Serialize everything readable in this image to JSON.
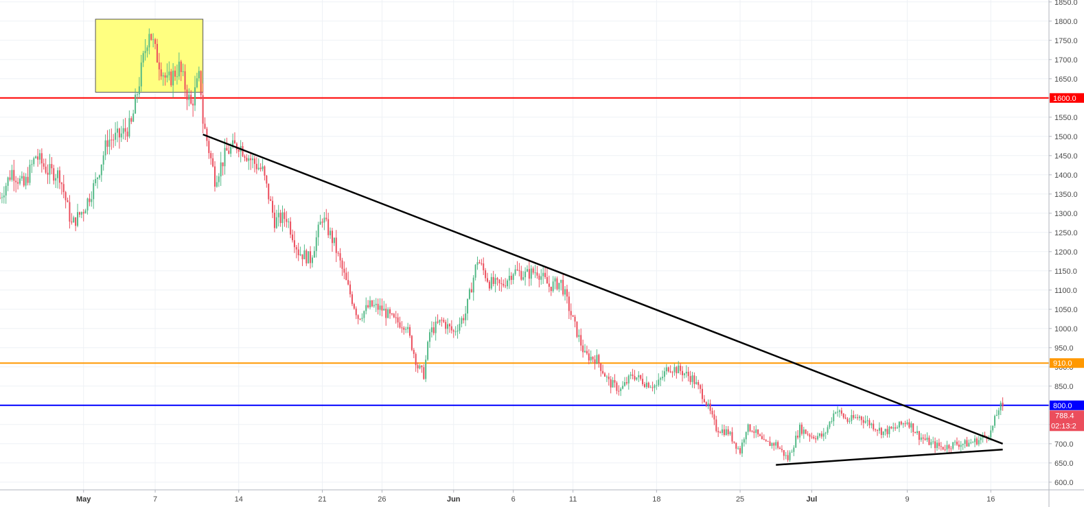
{
  "colors": {
    "up": "#53b987",
    "down": "#eb4d5c",
    "grid": "#eef1f5",
    "axis": "#b2b5be",
    "box_fill": "#ffff80",
    "box_stroke": "#555555",
    "trendline": "#000000"
  },
  "chart_data": {
    "type": "candlestick",
    "x_axis": {
      "type": "date",
      "range": [
        "2018-04-24",
        "2018-07-18"
      ],
      "ticks": [
        {
          "date": "2018-05-01",
          "label": "May",
          "month": true
        },
        {
          "date": "2018-05-07",
          "label": "7"
        },
        {
          "date": "2018-05-14",
          "label": "14"
        },
        {
          "date": "2018-05-21",
          "label": "21"
        },
        {
          "date": "2018-05-26",
          "label": "26"
        },
        {
          "date": "2018-06-01",
          "label": "Jun",
          "month": true
        },
        {
          "date": "2018-06-06",
          "label": "6"
        },
        {
          "date": "2018-06-11",
          "label": "11"
        },
        {
          "date": "2018-06-18",
          "label": "18"
        },
        {
          "date": "2018-06-25",
          "label": "25"
        },
        {
          "date": "2018-07-01",
          "label": "Jul",
          "month": true
        },
        {
          "date": "2018-07-09",
          "label": "9"
        },
        {
          "date": "2018-07-16",
          "label": "16"
        }
      ]
    },
    "y_axis": {
      "position": "right",
      "range": [
        580,
        1855
      ],
      "ticks": [
        600,
        650,
        700,
        750,
        800,
        850,
        900,
        950,
        1000,
        1050,
        1100,
        1150,
        1200,
        1250,
        1300,
        1350,
        1400,
        1450,
        1500,
        1550,
        1600,
        1650,
        1700,
        1750,
        1800,
        1850
      ],
      "tick_labels": [
        "600.0",
        "650.0",
        "700.0",
        "750.0",
        "800.0",
        "850.0",
        "900.0",
        "950.0",
        "1000.0",
        "1050.0",
        "1100.0",
        "1150.0",
        "1200.0",
        "1250.0",
        "1300.0",
        "1350.0",
        "1400.0",
        "1450.0",
        "1500.0",
        "1550.0",
        "1600.0",
        "1650.0",
        "1700.0",
        "1750.0",
        "1800.0",
        "1850.0"
      ]
    },
    "grid": true,
    "price_path": {
      "note_candles": "piecewise closes",
      "points": [
        [
          "2018-04-24",
          1340
        ],
        [
          "2018-04-25",
          1410
        ],
        [
          "2018-04-26",
          1370
        ],
        [
          "2018-04-27",
          1450
        ],
        [
          "2018-04-28",
          1410
        ],
        [
          "2018-04-29",
          1400
        ],
        [
          "2018-04-30",
          1270
        ],
        [
          "2018-05-01",
          1310
        ],
        [
          "2018-05-02",
          1380
        ],
        [
          "2018-05-03",
          1490
        ],
        [
          "2018-05-04",
          1500
        ],
        [
          "2018-05-05",
          1530
        ],
        [
          "2018-05-06",
          1700
        ],
        [
          "2018-05-06T12",
          1780
        ],
        [
          "2018-05-07",
          1720
        ],
        [
          "2018-05-08",
          1640
        ],
        [
          "2018-05-09",
          1680
        ],
        [
          "2018-05-10",
          1580
        ],
        [
          "2018-05-10T18",
          1660
        ],
        [
          "2018-05-11",
          1540
        ],
        [
          "2018-05-12",
          1390
        ],
        [
          "2018-05-13",
          1460
        ],
        [
          "2018-05-14",
          1480
        ],
        [
          "2018-05-15",
          1440
        ],
        [
          "2018-05-16",
          1410
        ],
        [
          "2018-05-17",
          1280
        ],
        [
          "2018-05-18",
          1290
        ],
        [
          "2018-05-19",
          1200
        ],
        [
          "2018-05-20",
          1180
        ],
        [
          "2018-05-21",
          1290
        ],
        [
          "2018-05-22",
          1220
        ],
        [
          "2018-05-23",
          1120
        ],
        [
          "2018-05-24",
          1030
        ],
        [
          "2018-05-25",
          1060
        ],
        [
          "2018-05-26",
          1050
        ],
        [
          "2018-05-27",
          1020
        ],
        [
          "2018-05-28",
          1010
        ],
        [
          "2018-05-29",
          900
        ],
        [
          "2018-05-29T12",
          880
        ],
        [
          "2018-05-30",
          990
        ],
        [
          "2018-05-31",
          1020
        ],
        [
          "2018-06-01",
          990
        ],
        [
          "2018-06-02",
          1040
        ],
        [
          "2018-06-03",
          1180
        ],
        [
          "2018-06-04",
          1120
        ],
        [
          "2018-06-05",
          1110
        ],
        [
          "2018-06-06",
          1150
        ],
        [
          "2018-06-07",
          1140
        ],
        [
          "2018-06-08",
          1150
        ],
        [
          "2018-06-09",
          1110
        ],
        [
          "2018-06-10",
          1120
        ],
        [
          "2018-06-11",
          1020
        ],
        [
          "2018-06-12",
          930
        ],
        [
          "2018-06-13",
          920
        ],
        [
          "2018-06-14",
          860
        ],
        [
          "2018-06-15",
          840
        ],
        [
          "2018-06-16",
          880
        ],
        [
          "2018-06-17",
          860
        ],
        [
          "2018-06-18",
          850
        ],
        [
          "2018-06-19",
          900
        ],
        [
          "2018-06-20",
          890
        ],
        [
          "2018-06-21",
          870
        ],
        [
          "2018-06-22",
          820
        ],
        [
          "2018-06-23",
          740
        ],
        [
          "2018-06-24",
          730
        ],
        [
          "2018-06-25",
          680
        ],
        [
          "2018-06-25T12",
          740
        ],
        [
          "2018-06-26",
          740
        ],
        [
          "2018-06-27",
          700
        ],
        [
          "2018-06-28",
          700
        ],
        [
          "2018-06-29",
          660
        ],
        [
          "2018-06-30",
          740
        ],
        [
          "2018-07-01",
          720
        ],
        [
          "2018-07-02",
          720
        ],
        [
          "2018-07-03",
          790
        ],
        [
          "2018-07-04",
          760
        ],
        [
          "2018-07-05",
          770
        ],
        [
          "2018-07-06",
          750
        ],
        [
          "2018-07-07",
          730
        ],
        [
          "2018-07-08",
          740
        ],
        [
          "2018-07-09",
          760
        ],
        [
          "2018-07-10",
          720
        ],
        [
          "2018-07-11",
          700
        ],
        [
          "2018-07-12",
          690
        ],
        [
          "2018-07-13",
          700
        ],
        [
          "2018-07-14",
          700
        ],
        [
          "2018-07-15",
          710
        ],
        [
          "2018-07-16",
          730
        ],
        [
          "2018-07-16T18",
          800
        ],
        [
          "2018-07-17",
          788.4
        ]
      ]
    },
    "horizontal_levels": [
      {
        "value": 1600,
        "color": "#ff0000",
        "label": "1600.0"
      },
      {
        "value": 910,
        "color": "#ff9800",
        "label": "910.0"
      },
      {
        "value": 800,
        "color": "#0000ff",
        "label": "800.0"
      }
    ],
    "current_price": {
      "value": 788.4,
      "label": "788.4",
      "countdown": "02:13:2",
      "color": "#eb4d5c"
    },
    "trendlines": [
      {
        "from": [
          "2018-05-11",
          1505
        ],
        "to": [
          "2018-07-17",
          700
        ]
      },
      {
        "from": [
          "2018-06-28",
          645
        ],
        "to": [
          "2018-07-17",
          685
        ]
      }
    ],
    "box": {
      "from": [
        "2018-05-02",
        1805
      ],
      "to": [
        "2018-05-11",
        1615
      ]
    }
  }
}
